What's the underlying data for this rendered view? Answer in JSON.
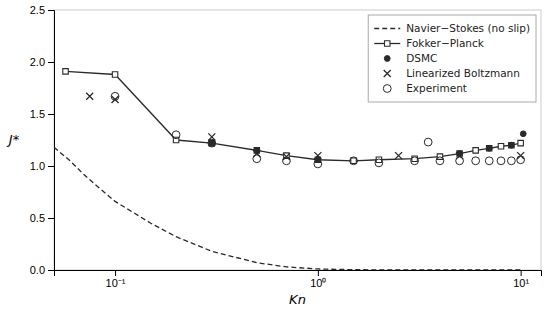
{
  "chart_data": {
    "type": "line",
    "xlabel": "Kn",
    "ylabel": "J*",
    "log": "x",
    "xlim": [
      0.05,
      12.6
    ],
    "ylim": [
      0,
      2.5
    ],
    "xticks": [
      {
        "value": 0.1,
        "label": "10⁻¹"
      },
      {
        "value": 1,
        "label": "10⁰"
      },
      {
        "value": 10,
        "label": "10¹"
      }
    ],
    "yticks": [
      {
        "value": 0,
        "label": "0.0"
      },
      0.5,
      {
        "value": 1,
        "label": "1.0"
      },
      1.5,
      {
        "value": 2,
        "label": "2.0"
      },
      2.5
    ],
    "grid": false,
    "legend": "upper right",
    "color": "#2a2a2a",
    "series": [
      {
        "name": "Navier−Stokes (no slip)",
        "type": "line",
        "line_style": "dashed",
        "marker": "none",
        "x": [
          0.05,
          0.06,
          0.07,
          0.08,
          0.1,
          0.15,
          0.2,
          0.3,
          0.5,
          0.7,
          1.0,
          1.5,
          2.0,
          3.0,
          5.0,
          7.0,
          10.0
        ],
        "values": [
          1.18,
          1.05,
          0.92,
          0.82,
          0.66,
          0.45,
          0.32,
          0.18,
          0.07,
          0.03,
          0.01,
          0.003,
          0.001,
          0.0003,
          3e-05,
          5e-06,
          3e-07
        ]
      },
      {
        "name": "Fokker−Planck",
        "type": "line",
        "line_style": "solid",
        "marker": "square",
        "x": [
          0.057,
          0.1,
          0.2,
          0.3,
          0.5,
          0.7,
          1.0,
          1.5,
          2.0,
          3.0,
          4.0,
          5.0,
          6.0,
          7.0,
          8.0,
          9.0,
          10.0
        ],
        "values": [
          1.91,
          1.88,
          1.25,
          1.22,
          1.15,
          1.1,
          1.06,
          1.05,
          1.06,
          1.07,
          1.09,
          1.12,
          1.15,
          1.17,
          1.19,
          1.2,
          1.22
        ]
      },
      {
        "name": "DSMC",
        "type": "scatter",
        "marker": "circle",
        "x": [
          0.3,
          0.5,
          1.0,
          5.0,
          7.0,
          9.0,
          10.3
        ],
        "values": [
          1.22,
          1.15,
          1.06,
          1.12,
          1.17,
          1.2,
          1.31
        ]
      },
      {
        "name": "Linearized Boltzmann",
        "type": "scatter",
        "marker": "x",
        "x": [
          0.075,
          0.1,
          0.3,
          0.5,
          0.7,
          1.0,
          2.5,
          5.0,
          10.0
        ],
        "values": [
          1.67,
          1.64,
          1.28,
          1.12,
          1.09,
          1.1,
          1.1,
          1.1,
          1.1
        ]
      },
      {
        "name": "Experiment",
        "type": "scatter",
        "marker": "circle-open",
        "x": [
          0.1,
          0.2,
          0.3,
          0.5,
          0.7,
          1.0,
          1.5,
          2.0,
          3.0,
          3.5,
          4.0,
          5.0,
          6.0,
          7.0,
          8.0,
          9.0,
          10.0
        ],
        "values": [
          1.67,
          1.3,
          1.22,
          1.07,
          1.05,
          1.02,
          1.05,
          1.03,
          1.05,
          1.23,
          1.05,
          1.05,
          1.05,
          1.05,
          1.05,
          1.05,
          1.06
        ]
      }
    ]
  }
}
